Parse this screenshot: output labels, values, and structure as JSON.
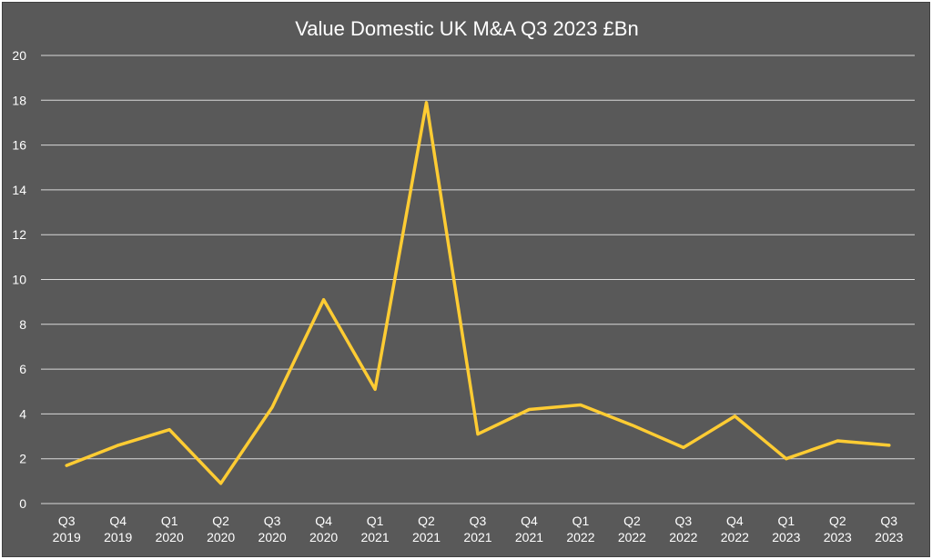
{
  "chart_data": {
    "type": "line",
    "title": "Value Domestic UK M&A Q3 2023 £Bn",
    "xlabel": "",
    "ylabel": "",
    "ylim": [
      0,
      20
    ],
    "yticks": [
      0,
      2,
      4,
      6,
      8,
      10,
      12,
      14,
      16,
      18,
      20
    ],
    "grid": true,
    "legend": "none",
    "categories": [
      [
        "Q3",
        "2019"
      ],
      [
        "Q4",
        "2019"
      ],
      [
        "Q1",
        "2020"
      ],
      [
        "Q2",
        "2020"
      ],
      [
        "Q3",
        "2020"
      ],
      [
        "Q4",
        "2020"
      ],
      [
        "Q1",
        "2021"
      ],
      [
        "Q2",
        "2021"
      ],
      [
        "Q3",
        "2021"
      ],
      [
        "Q4",
        "2021"
      ],
      [
        "Q1",
        "2022"
      ],
      [
        "Q2",
        "2022"
      ],
      [
        "Q3",
        "2022"
      ],
      [
        "Q4",
        "2022"
      ],
      [
        "Q1",
        "2023"
      ],
      [
        "Q2",
        "2023"
      ],
      [
        "Q3",
        "2023"
      ]
    ],
    "series": [
      {
        "values": [
          1.7,
          2.6,
          3.3,
          0.9,
          4.3,
          9.1,
          5.1,
          17.9,
          3.1,
          4.2,
          4.4,
          3.5,
          2.5,
          3.9,
          2.0,
          2.8,
          2.6
        ],
        "color": "#ffcc33"
      }
    ],
    "colors": {
      "background": "#595959",
      "gridline": "#d9d9d9",
      "text": "#ffffff"
    }
  }
}
